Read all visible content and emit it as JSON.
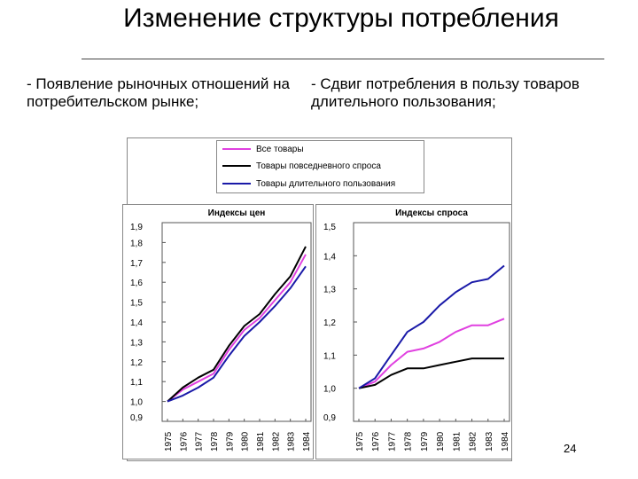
{
  "slide": {
    "title": "Изменение структуры потребления",
    "bullet_left": "- Появление рыночных отношений на потребительском рынке;",
    "bullet_right": "- Сдвиг потребления в пользу товаров длительного пользования;",
    "page_number": "24"
  },
  "legend": {
    "items": [
      {
        "label": "Все товары",
        "color": "#e040e0"
      },
      {
        "label": "Товары повседневного спроса",
        "color": "#000000"
      },
      {
        "label": "Товары длительного пользования",
        "color": "#1a1aa8"
      }
    ]
  },
  "chart_data": [
    {
      "type": "line",
      "title": "Индексы цен",
      "x": [
        "1975",
        "1976",
        "1977",
        "1978",
        "1979",
        "1980",
        "1981",
        "1982",
        "1983",
        "1984"
      ],
      "ylim": [
        0.9,
        1.9
      ],
      "yticks": [
        "0,9",
        "1,0",
        "1,1",
        "1,2",
        "1,3",
        "1,4",
        "1,5",
        "1,6",
        "1,7",
        "1,8",
        "1,9"
      ],
      "series": [
        {
          "name": "Все товары",
          "color": "#e040e0",
          "values": [
            1.0,
            1.06,
            1.1,
            1.14,
            1.26,
            1.36,
            1.42,
            1.51,
            1.6,
            1.74
          ]
        },
        {
          "name": "Товары повседневного спроса",
          "color": "#000000",
          "values": [
            1.0,
            1.07,
            1.12,
            1.16,
            1.28,
            1.38,
            1.44,
            1.54,
            1.63,
            1.78
          ]
        },
        {
          "name": "Товары длительного пользования",
          "color": "#1a1aa8",
          "values": [
            1.0,
            1.03,
            1.07,
            1.12,
            1.23,
            1.33,
            1.4,
            1.48,
            1.57,
            1.68
          ]
        }
      ]
    },
    {
      "type": "line",
      "title": "Индексы спроса",
      "x": [
        "1975",
        "1976",
        "1977",
        "1978",
        "1979",
        "1980",
        "1981",
        "1982",
        "1983",
        "1984"
      ],
      "ylim": [
        0.9,
        1.5
      ],
      "yticks": [
        "0,9",
        "1,0",
        "1,1",
        "1,2",
        "1,3",
        "1,4",
        "1,5"
      ],
      "series": [
        {
          "name": "Все товары",
          "color": "#e040e0",
          "values": [
            1.0,
            1.02,
            1.07,
            1.11,
            1.12,
            1.14,
            1.17,
            1.19,
            1.19,
            1.21
          ]
        },
        {
          "name": "Товары повседневного спроса",
          "color": "#000000",
          "values": [
            1.0,
            1.01,
            1.04,
            1.06,
            1.06,
            1.07,
            1.08,
            1.09,
            1.09,
            1.09
          ]
        },
        {
          "name": "Товары длительного пользования",
          "color": "#1a1aa8",
          "values": [
            1.0,
            1.03,
            1.1,
            1.17,
            1.2,
            1.25,
            1.29,
            1.32,
            1.33,
            1.37
          ]
        }
      ]
    }
  ]
}
